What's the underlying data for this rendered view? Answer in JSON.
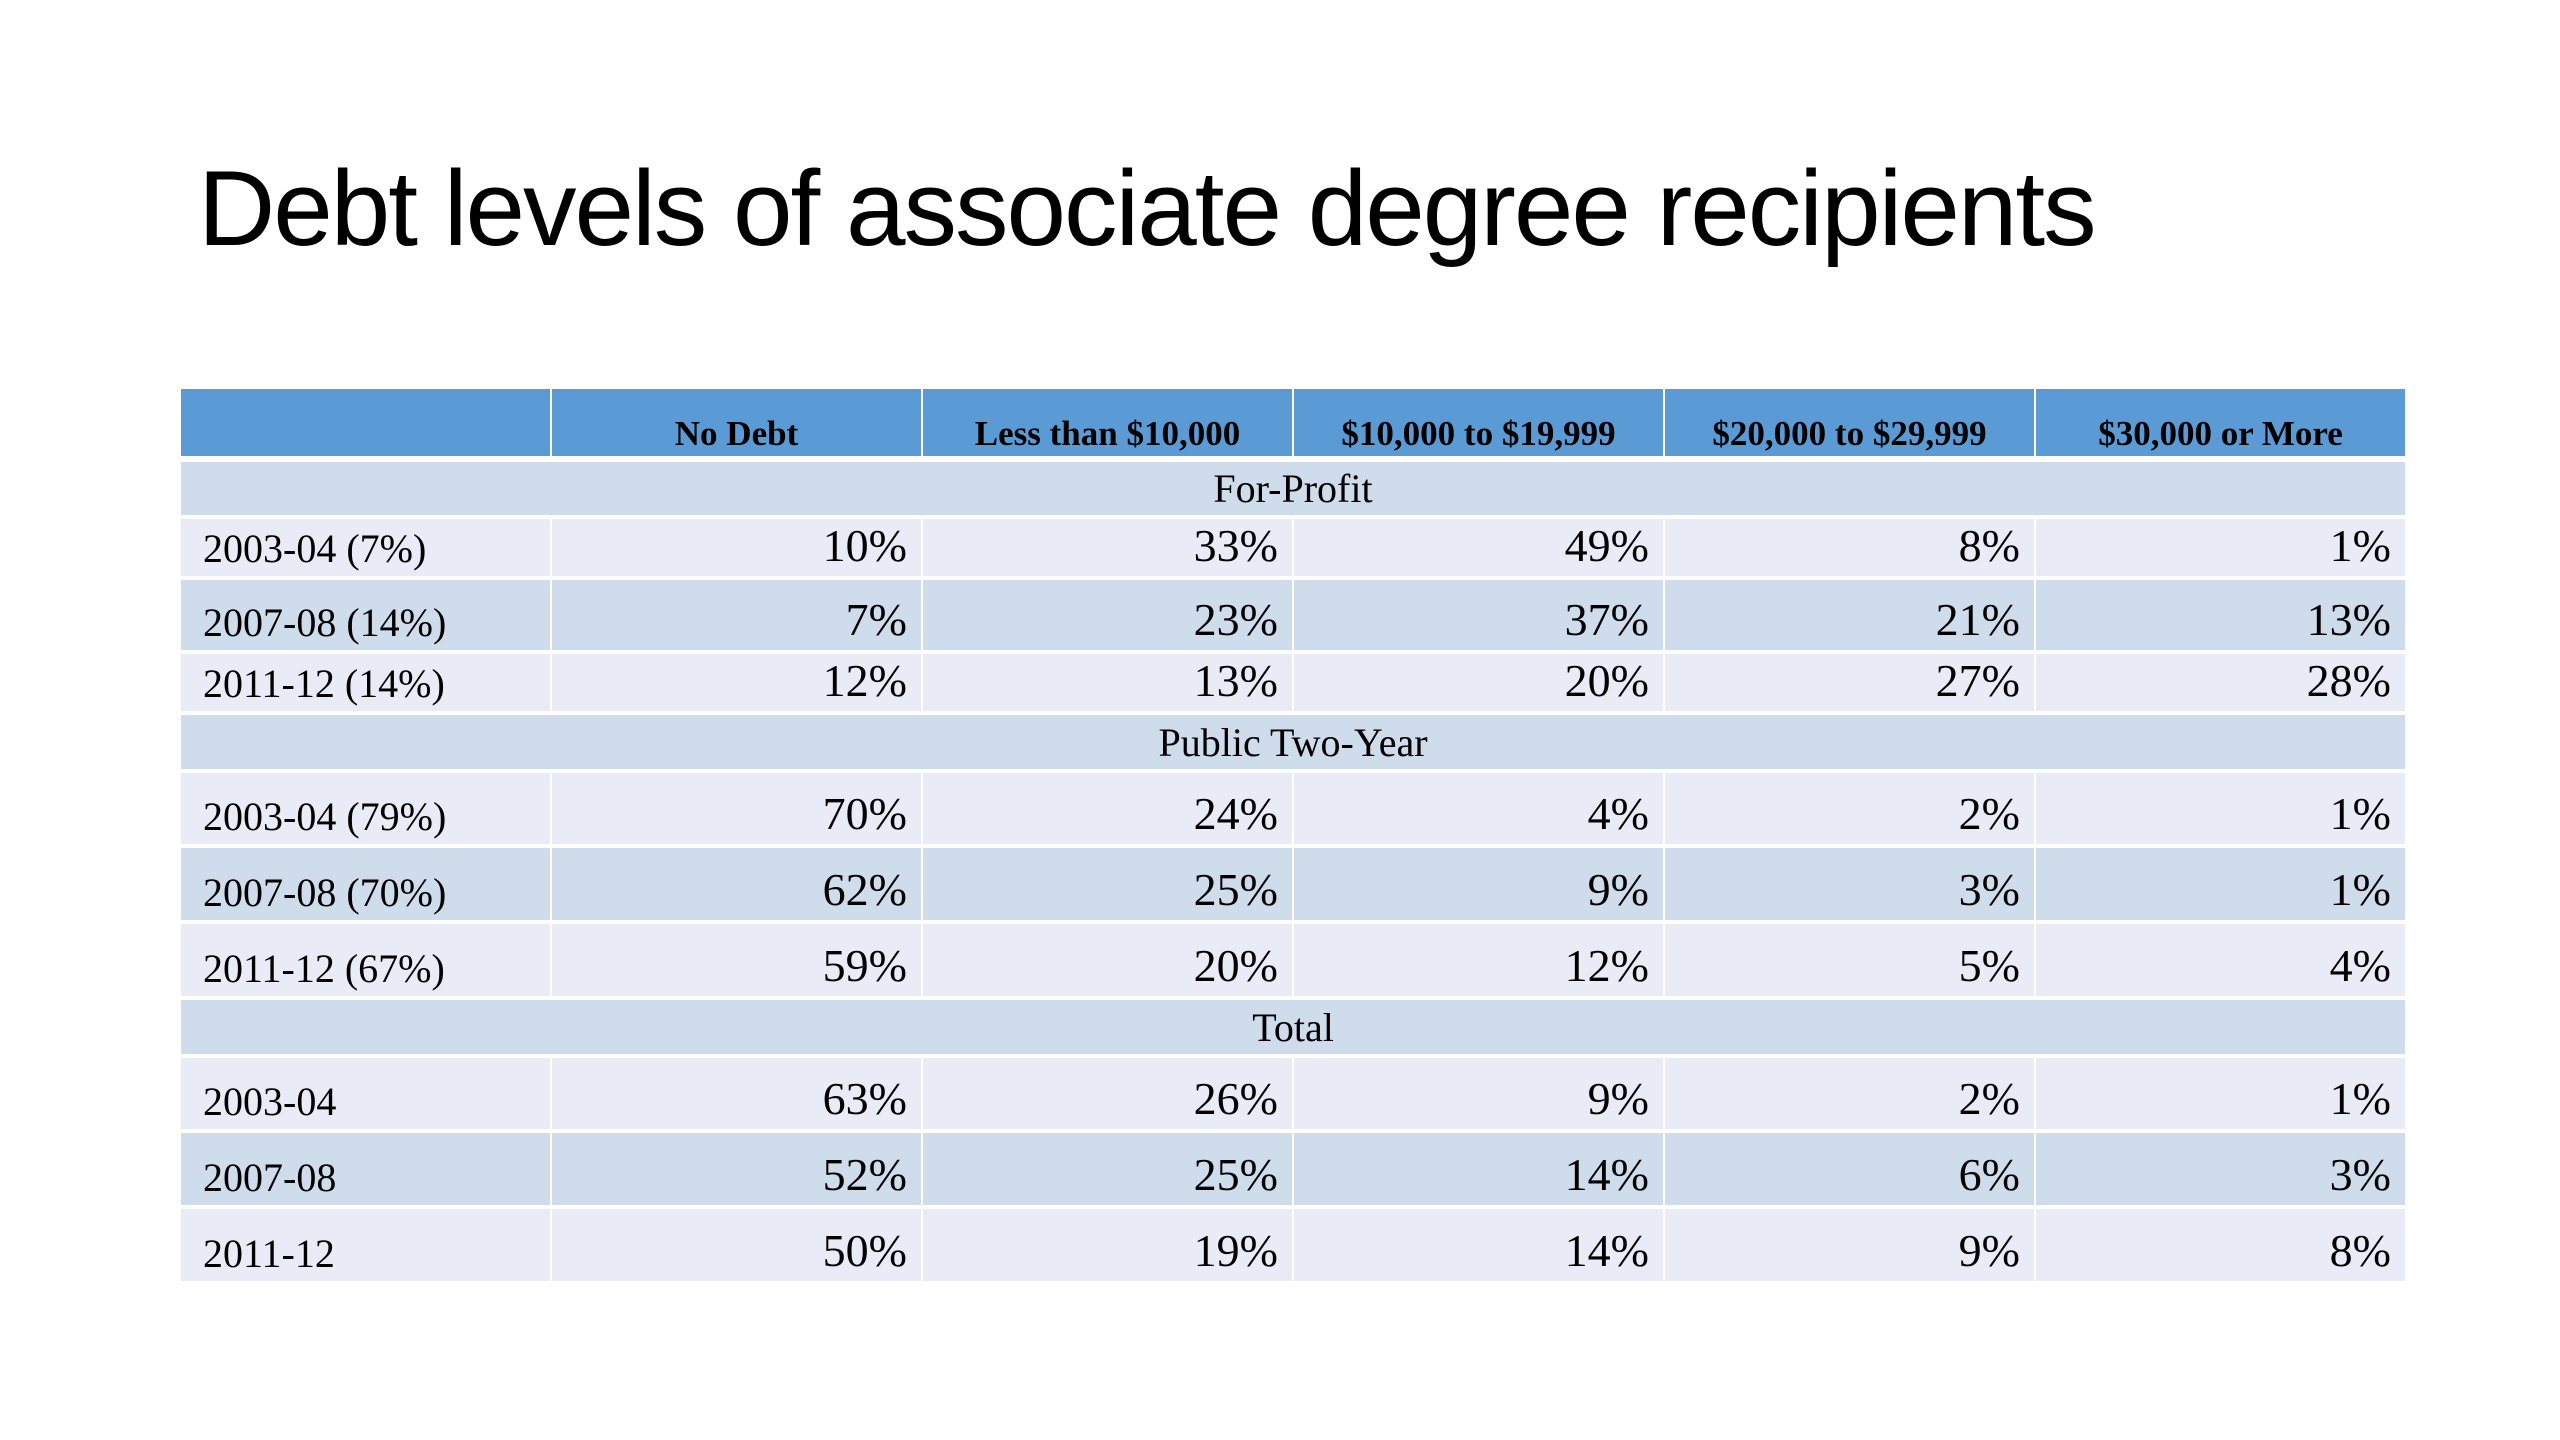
{
  "title": "Debt levels of associate degree recipients",
  "table": {
    "headers": [
      "",
      "No Debt",
      "Less than $10,000",
      "$10,000 to $19,999",
      "$20,000 to $29,999",
      "$30,000 or More"
    ],
    "sections": [
      {
        "name": "For-Profit",
        "rows": [
          {
            "label": "2003-04 (7%)",
            "values": [
              "10%",
              "33%",
              "49%",
              "8%",
              "1%"
            ]
          },
          {
            "label": "2007-08 (14%)",
            "values": [
              "7%",
              "23%",
              "37%",
              "21%",
              "13%"
            ]
          },
          {
            "label": "2011-12 (14%)",
            "values": [
              "12%",
              "13%",
              "20%",
              "27%",
              "28%"
            ]
          }
        ]
      },
      {
        "name": "Public Two-Year",
        "rows": [
          {
            "label": "2003-04 (79%)",
            "values": [
              "70%",
              "24%",
              "4%",
              "2%",
              "1%"
            ]
          },
          {
            "label": "2007-08 (70%)",
            "values": [
              "62%",
              "25%",
              "9%",
              "3%",
              "1%"
            ]
          },
          {
            "label": "2011-12 (67%)",
            "values": [
              "59%",
              "20%",
              "12%",
              "5%",
              "4%"
            ]
          }
        ]
      },
      {
        "name": "Total",
        "rows": [
          {
            "label": "2003-04",
            "values": [
              "63%",
              "26%",
              "9%",
              "2%",
              "1%"
            ]
          },
          {
            "label": "2007-08",
            "values": [
              "52%",
              "25%",
              "14%",
              "6%",
              "3%"
            ]
          },
          {
            "label": "2011-12",
            "values": [
              "50%",
              "19%",
              "14%",
              "9%",
              "8%"
            ]
          }
        ]
      }
    ]
  },
  "colors": {
    "header_bg": "#5b9bd5",
    "band_dark": "#cfdcec",
    "band_light": "#e9ecf6"
  }
}
